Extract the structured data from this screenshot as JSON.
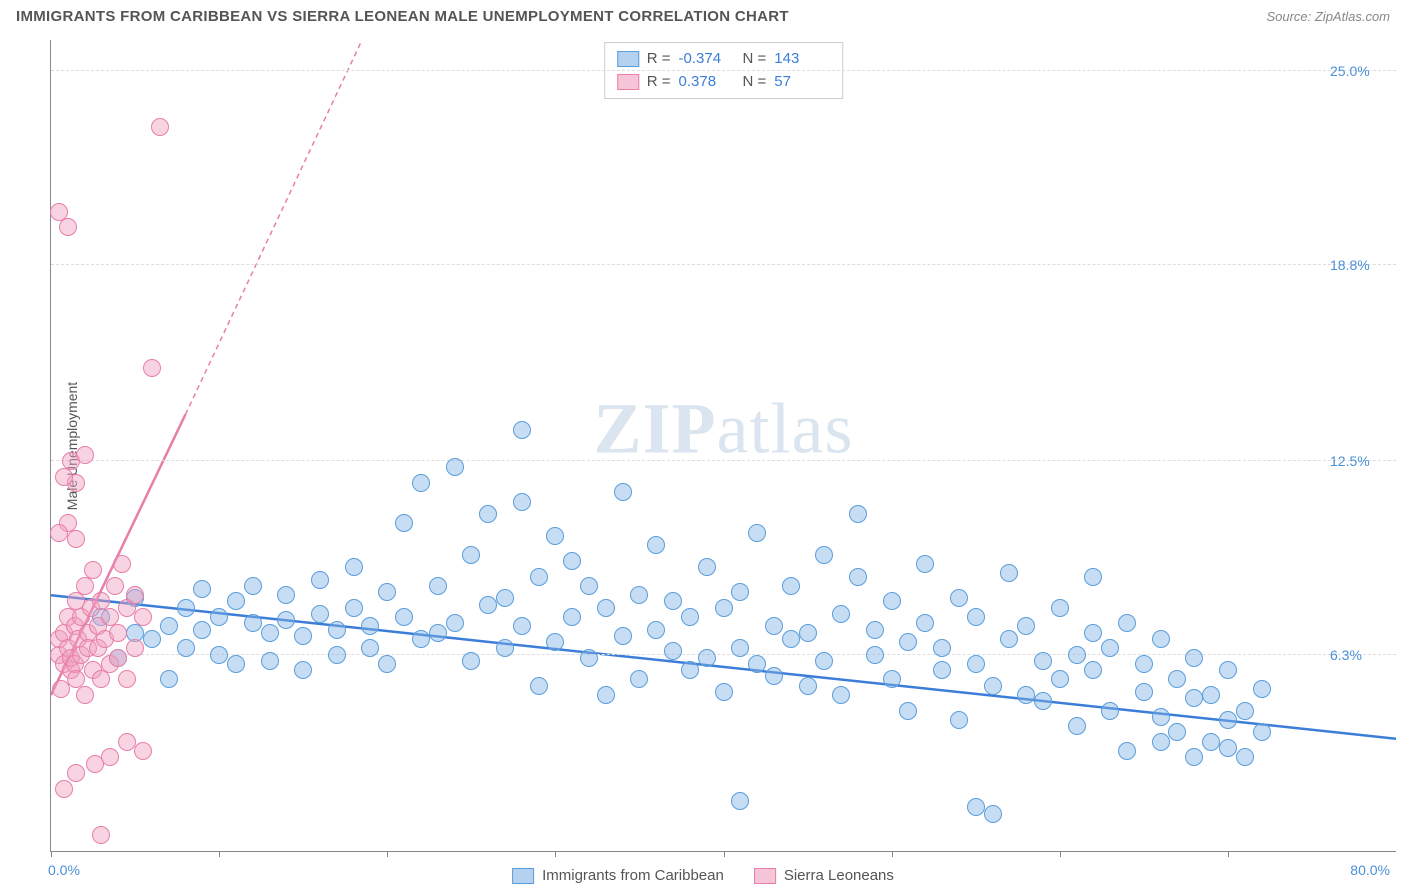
{
  "title": "IMMIGRANTS FROM CARIBBEAN VS SIERRA LEONEAN MALE UNEMPLOYMENT CORRELATION CHART",
  "source": "Source: ZipAtlas.com",
  "watermark": "ZIPatlas",
  "ylabel": "Male Unemployment",
  "chart": {
    "type": "scatter",
    "xlim": [
      0,
      80
    ],
    "ylim": [
      0,
      26
    ],
    "x_min_label": "0.0%",
    "x_max_label": "80.0%",
    "y_ticks": [
      6.3,
      12.5,
      18.8,
      25.0
    ],
    "y_tick_labels": [
      "6.3%",
      "12.5%",
      "18.8%",
      "25.0%"
    ],
    "x_tick_positions": [
      0,
      10,
      20,
      30,
      40,
      50,
      60,
      70
    ],
    "grid_color": "#dddddd",
    "axis_color": "#888888",
    "background_color": "#ffffff",
    "point_radius": 9,
    "series": [
      {
        "name": "Immigrants from Caribbean",
        "color_fill": "rgba(130,180,230,0.45)",
        "color_stroke": "#5a9edb",
        "R": "-0.374",
        "N": "143",
        "trend": {
          "x1": 0,
          "y1": 8.2,
          "x2": 80,
          "y2": 3.6,
          "stroke": "#3b7dd8",
          "width": 2.5,
          "dash": "none"
        },
        "points": [
          [
            3,
            7.5
          ],
          [
            4,
            6.2
          ],
          [
            5,
            7.0
          ],
          [
            5,
            8.1
          ],
          [
            6,
            6.8
          ],
          [
            7,
            7.2
          ],
          [
            7,
            5.5
          ],
          [
            8,
            6.5
          ],
          [
            8,
            7.8
          ],
          [
            9,
            7.1
          ],
          [
            9,
            8.4
          ],
          [
            10,
            6.3
          ],
          [
            10,
            7.5
          ],
          [
            11,
            8.0
          ],
          [
            11,
            6.0
          ],
          [
            12,
            7.3
          ],
          [
            12,
            8.5
          ],
          [
            13,
            7.0
          ],
          [
            13,
            6.1
          ],
          [
            14,
            8.2
          ],
          [
            14,
            7.4
          ],
          [
            15,
            6.9
          ],
          [
            15,
            5.8
          ],
          [
            16,
            7.6
          ],
          [
            16,
            8.7
          ],
          [
            17,
            7.1
          ],
          [
            17,
            6.3
          ],
          [
            18,
            7.8
          ],
          [
            18,
            9.1
          ],
          [
            19,
            6.5
          ],
          [
            19,
            7.2
          ],
          [
            20,
            8.3
          ],
          [
            20,
            6.0
          ],
          [
            21,
            7.5
          ],
          [
            21,
            10.5
          ],
          [
            22,
            11.8
          ],
          [
            22,
            6.8
          ],
          [
            23,
            7.0
          ],
          [
            23,
            8.5
          ],
          [
            24,
            12.3
          ],
          [
            24,
            7.3
          ],
          [
            25,
            6.1
          ],
          [
            25,
            9.5
          ],
          [
            26,
            7.9
          ],
          [
            26,
            10.8
          ],
          [
            27,
            6.5
          ],
          [
            27,
            8.1
          ],
          [
            28,
            7.2
          ],
          [
            28,
            11.2
          ],
          [
            29,
            5.3
          ],
          [
            29,
            8.8
          ],
          [
            30,
            6.7
          ],
          [
            30,
            10.1
          ],
          [
            31,
            7.5
          ],
          [
            31,
            9.3
          ],
          [
            32,
            6.2
          ],
          [
            32,
            8.5
          ],
          [
            33,
            5.0
          ],
          [
            33,
            7.8
          ],
          [
            34,
            11.5
          ],
          [
            34,
            6.9
          ],
          [
            35,
            8.2
          ],
          [
            35,
            5.5
          ],
          [
            36,
            7.1
          ],
          [
            36,
            9.8
          ],
          [
            37,
            6.4
          ],
          [
            37,
            8.0
          ],
          [
            38,
            5.8
          ],
          [
            38,
            7.5
          ],
          [
            28,
            13.5
          ],
          [
            39,
            6.2
          ],
          [
            39,
            9.1
          ],
          [
            40,
            7.8
          ],
          [
            40,
            5.1
          ],
          [
            41,
            6.5
          ],
          [
            41,
            8.3
          ],
          [
            42,
            10.2
          ],
          [
            42,
            6.0
          ],
          [
            43,
            7.2
          ],
          [
            43,
            5.6
          ],
          [
            44,
            8.5
          ],
          [
            44,
            6.8
          ],
          [
            45,
            5.3
          ],
          [
            45,
            7.0
          ],
          [
            46,
            9.5
          ],
          [
            46,
            6.1
          ],
          [
            47,
            7.6
          ],
          [
            47,
            5.0
          ],
          [
            48,
            8.8
          ],
          [
            48,
            10.8
          ],
          [
            49,
            6.3
          ],
          [
            49,
            7.1
          ],
          [
            50,
            5.5
          ],
          [
            50,
            8.0
          ],
          [
            51,
            6.7
          ],
          [
            51,
            4.5
          ],
          [
            52,
            7.3
          ],
          [
            52,
            9.2
          ],
          [
            53,
            5.8
          ],
          [
            53,
            6.5
          ],
          [
            54,
            8.1
          ],
          [
            54,
            4.2
          ],
          [
            55,
            6.0
          ],
          [
            55,
            7.5
          ],
          [
            56,
            5.3
          ],
          [
            41,
            1.6
          ],
          [
            57,
            8.9
          ],
          [
            57,
            6.8
          ],
          [
            58,
            5.0
          ],
          [
            58,
            7.2
          ],
          [
            59,
            6.1
          ],
          [
            59,
            4.8
          ],
          [
            60,
            7.8
          ],
          [
            60,
            5.5
          ],
          [
            61,
            6.3
          ],
          [
            61,
            4.0
          ],
          [
            62,
            7.0
          ],
          [
            62,
            5.8
          ],
          [
            63,
            6.5
          ],
          [
            63,
            4.5
          ],
          [
            64,
            7.3
          ],
          [
            55,
            1.4
          ],
          [
            65,
            5.1
          ],
          [
            65,
            6.0
          ],
          [
            66,
            4.3
          ],
          [
            66,
            6.8
          ],
          [
            67,
            5.5
          ],
          [
            67,
            3.8
          ],
          [
            68,
            6.2
          ],
          [
            68,
            4.9
          ],
          [
            69,
            5.0
          ],
          [
            69,
            3.5
          ],
          [
            70,
            5.8
          ],
          [
            70,
            4.2
          ],
          [
            71,
            4.5
          ],
          [
            71,
            3.0
          ],
          [
            72,
            5.2
          ],
          [
            72,
            3.8
          ],
          [
            62,
            8.8
          ],
          [
            64,
            3.2
          ],
          [
            66,
            3.5
          ],
          [
            68,
            3.0
          ],
          [
            70,
            3.3
          ],
          [
            56,
            1.2
          ]
        ]
      },
      {
        "name": "Sierra Leoneans",
        "color_fill": "rgba(240,160,190,0.45)",
        "color_stroke": "#e87fa8",
        "R": "0.378",
        "N": "57",
        "trend_solid": {
          "x1": 0,
          "y1": 5.0,
          "x2": 8,
          "y2": 14.0,
          "stroke": "#e87fa8",
          "width": 2.5
        },
        "trend_dash": {
          "x1": 8,
          "y1": 14.0,
          "x2": 18.5,
          "y2": 26.0,
          "stroke": "#e87fa8",
          "width": 1.5
        },
        "points": [
          [
            0.5,
            6.3
          ],
          [
            0.5,
            6.8
          ],
          [
            0.6,
            5.2
          ],
          [
            0.8,
            7.0
          ],
          [
            0.8,
            6.0
          ],
          [
            1.0,
            6.5
          ],
          [
            1.0,
            7.5
          ],
          [
            1.2,
            5.8
          ],
          [
            1.2,
            6.2
          ],
          [
            1.4,
            7.2
          ],
          [
            1.4,
            6.0
          ],
          [
            1.5,
            8.0
          ],
          [
            1.5,
            5.5
          ],
          [
            1.6,
            6.8
          ],
          [
            1.8,
            7.5
          ],
          [
            1.8,
            6.3
          ],
          [
            2.0,
            8.5
          ],
          [
            2.0,
            5.0
          ],
          [
            2.2,
            7.0
          ],
          [
            2.2,
            6.5
          ],
          [
            2.4,
            7.8
          ],
          [
            2.5,
            5.8
          ],
          [
            2.5,
            9.0
          ],
          [
            2.8,
            6.5
          ],
          [
            2.8,
            7.2
          ],
          [
            3.0,
            8.0
          ],
          [
            3.0,
            5.5
          ],
          [
            3.2,
            6.8
          ],
          [
            3.5,
            7.5
          ],
          [
            3.5,
            6.0
          ],
          [
            3.8,
            8.5
          ],
          [
            4.0,
            7.0
          ],
          [
            4.0,
            6.2
          ],
          [
            4.2,
            9.2
          ],
          [
            4.5,
            7.8
          ],
          [
            4.5,
            5.5
          ],
          [
            5.0,
            8.2
          ],
          [
            5.0,
            6.5
          ],
          [
            5.5,
            7.5
          ],
          [
            5.5,
            3.2
          ],
          [
            1.0,
            10.5
          ],
          [
            1.5,
            11.8
          ],
          [
            0.8,
            12.0
          ],
          [
            1.2,
            12.5
          ],
          [
            2.0,
            12.7
          ],
          [
            1.5,
            10.0
          ],
          [
            0.5,
            10.2
          ],
          [
            6.0,
            15.5
          ],
          [
            0.8,
            2.0
          ],
          [
            1.5,
            2.5
          ],
          [
            2.6,
            2.8
          ],
          [
            3.5,
            3.0
          ],
          [
            4.5,
            3.5
          ],
          [
            1.0,
            20.0
          ],
          [
            0.5,
            20.5
          ],
          [
            6.5,
            23.2
          ],
          [
            3.0,
            0.5
          ]
        ]
      }
    ]
  },
  "legend_bottom": [
    {
      "swatch": "blue",
      "label": "Immigrants from Caribbean"
    },
    {
      "swatch": "pink",
      "label": "Sierra Leoneans"
    }
  ]
}
